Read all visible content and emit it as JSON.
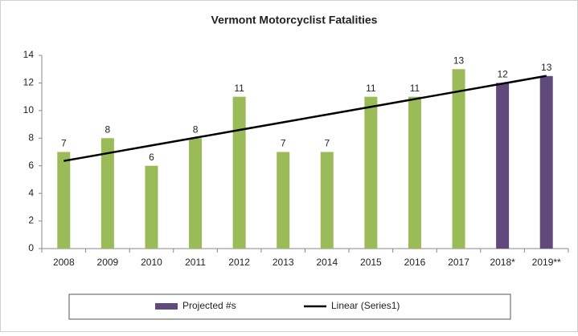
{
  "chart_data": {
    "type": "bar",
    "title": "Vermont Motorcyclist Fatalities",
    "categories": [
      "2008",
      "2009",
      "2010",
      "2011",
      "2012",
      "2013",
      "2014",
      "2015",
      "2016",
      "2017",
      "2018*",
      "2019**"
    ],
    "values": [
      7,
      8,
      6,
      8,
      11,
      7,
      7,
      11,
      11,
      13,
      12,
      12.5
    ],
    "value_labels": [
      "7",
      "8",
      "6",
      "8",
      "11",
      "7",
      "7",
      "11",
      "11",
      "13",
      "12",
      "13"
    ],
    "colors": [
      "#9bbb59",
      "#9bbb59",
      "#9bbb59",
      "#9bbb59",
      "#9bbb59",
      "#9bbb59",
      "#9bbb59",
      "#9bbb59",
      "#9bbb59",
      "#9bbb59",
      "#604a7b",
      "#604a7b"
    ],
    "trendline": {
      "name": "Linear (Series1)",
      "color": "#000000",
      "values": [
        6.35,
        6.91,
        7.47,
        8.03,
        8.59,
        9.15,
        9.71,
        10.27,
        10.83,
        11.39,
        11.95,
        12.51
      ]
    },
    "legend": [
      {
        "label": "Projected #s",
        "color": "#604a7b"
      },
      {
        "label": "Linear (Series1)",
        "color": "#000000"
      }
    ],
    "ylim": [
      0,
      14
    ],
    "yticks": [
      0,
      2,
      4,
      6,
      8,
      10,
      12,
      14
    ],
    "grid": false
  }
}
